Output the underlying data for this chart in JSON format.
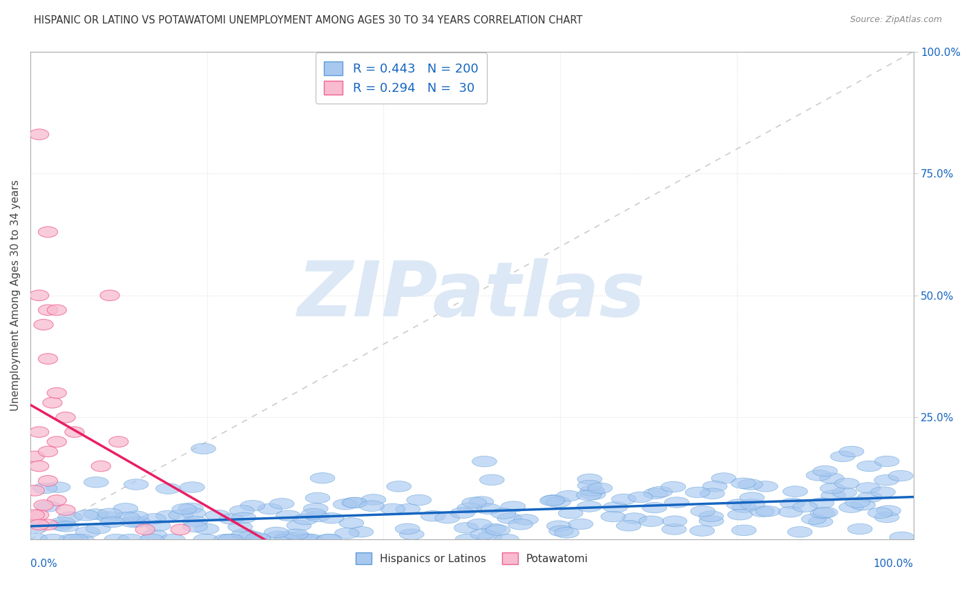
{
  "title": "HISPANIC OR LATINO VS POTAWATOMI UNEMPLOYMENT AMONG AGES 30 TO 34 YEARS CORRELATION CHART",
  "source": "Source: ZipAtlas.com",
  "ylabel": "Unemployment Among Ages 30 to 34 years",
  "legend_entries": [
    {
      "label": "Hispanics or Latinos",
      "color": "#a8c8f0",
      "R": 0.443,
      "N": 200
    },
    {
      "label": "Potawatomi",
      "color": "#f8bbd0",
      "R": 0.294,
      "N": 30
    }
  ],
  "blue_marker_color": "#a8c8f0",
  "pink_marker_color": "#f8bbd0",
  "blue_edge_color": "#5b9bd5",
  "pink_edge_color": "#f06090",
  "regression_blue_color": "#1565c0",
  "regression_pink_color": "#e91e63",
  "reference_line_color": "#cccccc",
  "text_color": "#1565c0",
  "title_color": "#333333",
  "background_color": "#ffffff",
  "watermark_color": "#dce8f5",
  "watermark_text": "ZIPatlas",
  "grid_color": "#dddddd",
  "seed": 42,
  "N_blue": 200,
  "N_pink": 30
}
